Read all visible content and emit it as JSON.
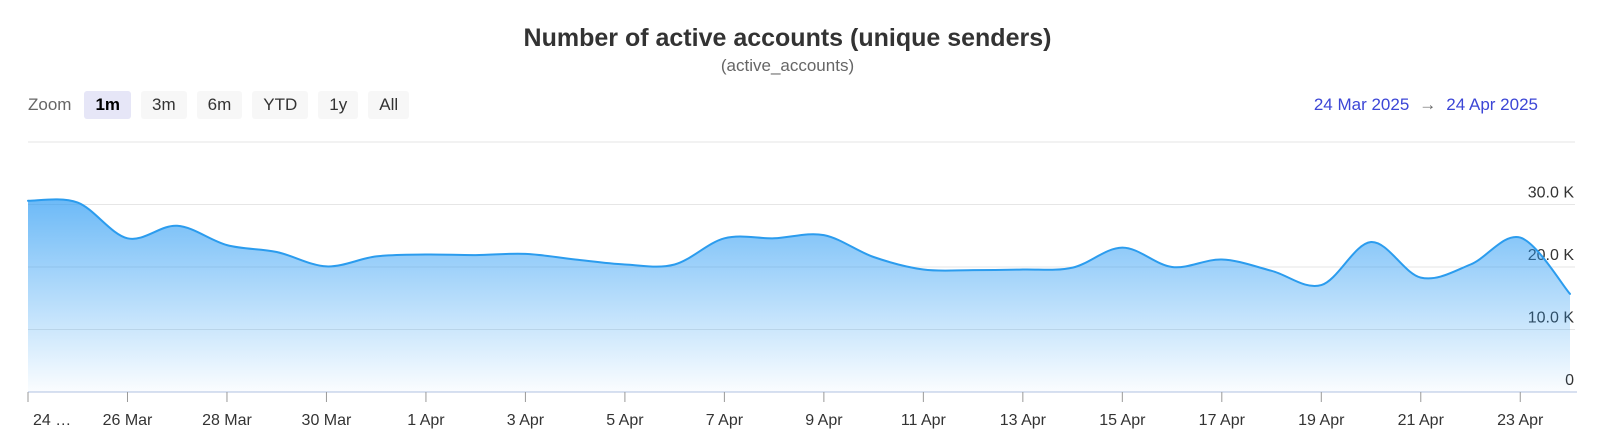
{
  "header": {
    "title": "Number of active accounts (unique senders)",
    "subtitle": "(active_accounts)"
  },
  "range_selector": {
    "zoom_label": "Zoom",
    "buttons": [
      {
        "label": "1m",
        "selected": true
      },
      {
        "label": "3m",
        "selected": false
      },
      {
        "label": "6m",
        "selected": false
      },
      {
        "label": "YTD",
        "selected": false
      },
      {
        "label": "1y",
        "selected": false
      },
      {
        "label": "All",
        "selected": false
      }
    ],
    "from_date": "24 Mar 2025",
    "arrow": "→",
    "to_date": "24 Apr 2025"
  },
  "colors": {
    "series_line": "#2b9cee",
    "series_fill_base": "#2196f3",
    "grid": "#e6e6e6",
    "axis_line": "#ccd6eb",
    "tick": "#999999",
    "axis_text": "#333333",
    "button_bg": "#f7f7f7",
    "button_selected_bg": "#e6e6f7",
    "range_text": "#3c46d6",
    "subtitle_text": "#666666"
  },
  "chart_data": {
    "type": "area",
    "title": "Number of active accounts (unique senders)",
    "subtitle": "(active_accounts)",
    "year": 2025,
    "x": [
      "24 Mar",
      "25 Mar",
      "26 Mar",
      "27 Mar",
      "28 Mar",
      "29 Mar",
      "30 Mar",
      "31 Mar",
      "1 Apr",
      "2 Apr",
      "3 Apr",
      "4 Apr",
      "5 Apr",
      "6 Apr",
      "7 Apr",
      "8 Apr",
      "9 Apr",
      "10 Apr",
      "11 Apr",
      "12 Apr",
      "13 Apr",
      "14 Apr",
      "15 Apr",
      "16 Apr",
      "17 Apr",
      "18 Apr",
      "19 Apr",
      "20 Apr",
      "21 Apr",
      "22 Apr",
      "23 Apr",
      "24 Apr"
    ],
    "values": [
      30600,
      30300,
      24600,
      26600,
      23500,
      22400,
      20100,
      21700,
      22000,
      21900,
      22100,
      21200,
      20400,
      20400,
      24600,
      24600,
      25100,
      21600,
      19600,
      19500,
      19600,
      19900,
      23100,
      20000,
      21200,
      19400,
      17100,
      24000,
      18300,
      20400,
      24700,
      15700
    ],
    "ylim": [
      0,
      40000
    ],
    "yticks": [
      {
        "v": 0,
        "label": "0"
      },
      {
        "v": 10000,
        "label": "10.0 K"
      },
      {
        "v": 20000,
        "label": "20.0 K"
      },
      {
        "v": 30000,
        "label": "30.0 K"
      },
      {
        "v": 40000,
        "label": ""
      }
    ],
    "xtick_every_days": 2,
    "xtick_labels": [
      "24 …",
      "26 Mar",
      "28 Mar",
      "30 Mar",
      "1 Apr",
      "3 Apr",
      "5 Apr",
      "7 Apr",
      "9 Apr",
      "11 Apr",
      "13 Apr",
      "15 Apr",
      "17 Apr",
      "19 Apr",
      "21 Apr",
      "23 Apr"
    ],
    "grid": true,
    "legend": false,
    "yaxis_side": "right"
  }
}
